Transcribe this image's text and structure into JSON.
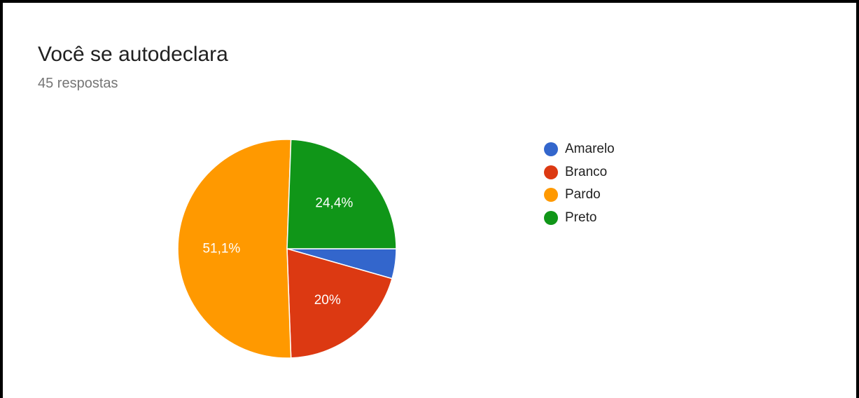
{
  "card": {
    "title": "Você se autodeclara",
    "subtitle": "45 respostas"
  },
  "chart_data": {
    "type": "pie",
    "categories": [
      "Amarelo",
      "Branco",
      "Pardo",
      "Preto"
    ],
    "values": [
      4.4,
      20,
      51.1,
      24.4
    ],
    "data_labels": [
      "",
      "20%",
      "51,1%",
      "24,4%"
    ],
    "colors": [
      "#3366cc",
      "#dc3912",
      "#ff9900",
      "#109618"
    ],
    "legend_position": "right",
    "start": "east",
    "direction": "clockwise"
  }
}
